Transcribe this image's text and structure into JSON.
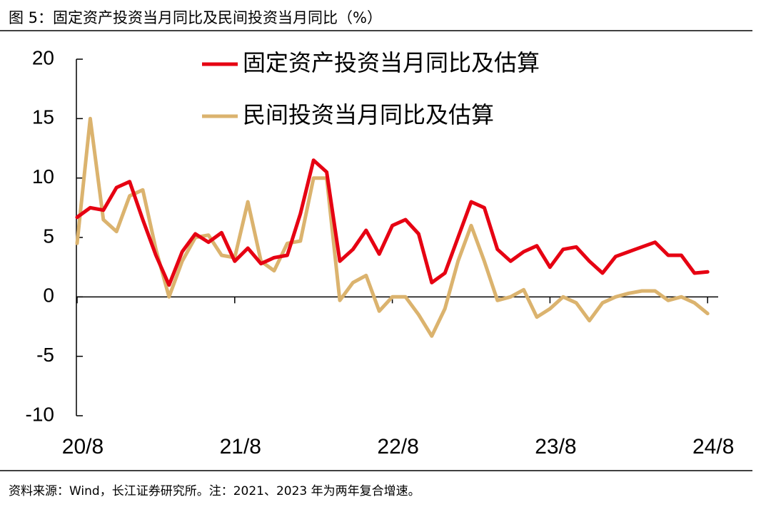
{
  "chart_data": {
    "type": "line",
    "title": "图 5：固定资产投资当月同比及民间投资当月同比（%）",
    "source": "资料来源：Wind，长江证券研究所。注：2021、2023 年为两年复合增速。",
    "categories": [
      "20/8",
      null,
      null,
      null,
      null,
      null,
      null,
      null,
      null,
      null,
      null,
      null,
      "21/8",
      null,
      null,
      null,
      null,
      null,
      null,
      null,
      null,
      null,
      null,
      null,
      "22/8",
      null,
      null,
      null,
      null,
      null,
      null,
      null,
      null,
      null,
      null,
      null,
      "23/8",
      null,
      null,
      null,
      null,
      null,
      null,
      null,
      null,
      null,
      null,
      null,
      "24/8"
    ],
    "series": [
      {
        "name": "固定资产投资当月同比及估算",
        "color": "#e60012",
        "values": [
          6.7,
          7.5,
          7.3,
          9.2,
          9.7,
          6.5,
          3.5,
          1.0,
          3.8,
          5.3,
          4.6,
          5.4,
          3.0,
          4.1,
          2.8,
          3.3,
          3.5,
          7.0,
          11.5,
          10.5,
          3.0,
          4.0,
          5.6,
          3.6,
          6.0,
          6.5,
          5.3,
          1.2,
          2.0,
          5.0,
          8.0,
          7.5,
          4.0,
          3.0,
          3.8,
          4.3,
          2.5,
          4.0,
          4.2,
          3.0,
          2.0,
          3.4,
          3.8,
          4.2,
          4.6,
          3.5,
          3.5,
          2.0,
          2.1
        ]
      },
      {
        "name": "民间投资当月同比及估算",
        "color": "#dbb36e",
        "values": [
          4.5,
          15.0,
          6.5,
          5.5,
          8.5,
          9.0,
          4.0,
          0.0,
          3.0,
          5.0,
          5.2,
          3.5,
          3.3,
          8.0,
          3.0,
          2.2,
          4.5,
          4.7,
          10.0,
          10.0,
          -0.3,
          1.2,
          1.8,
          -1.2,
          0.0,
          0.0,
          -1.5,
          -3.3,
          -1.0,
          3.0,
          6.0,
          3.0,
          -0.3,
          0.0,
          0.6,
          -1.7,
          -1.0,
          0.0,
          -0.5,
          -2.0,
          -0.5,
          0.0,
          0.3,
          0.5,
          0.5,
          -0.3,
          0.0,
          -0.5,
          -1.4
        ]
      }
    ],
    "ylim": [
      -10,
      20
    ],
    "yticks": [
      20,
      15,
      10,
      5,
      0,
      -5,
      -10
    ]
  }
}
